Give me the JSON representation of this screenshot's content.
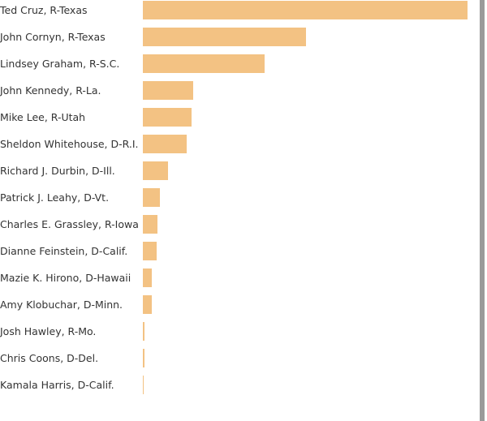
{
  "colors": {
    "bar": "#f3c283",
    "right_rule": "#9a9a9a"
  },
  "chart_data": {
    "type": "bar",
    "orientation": "horizontal",
    "categories": [
      "Ted Cruz, R-Texas",
      "John Cornyn, R-Texas",
      "Lindsey Graham, R-S.C.",
      "John Kennedy, R-La.",
      "Mike Lee, R-Utah",
      "Sheldon Whitehouse, D-R.I.",
      "Richard J. Durbin, D-Ill.",
      "Patrick J. Leahy, D-Vt.",
      "Charles E. Grassley, R-Iowa",
      "Dianne Feinstein, D-Calif.",
      "Mazie K. Hirono, D-Hawaii",
      "Amy Klobuchar, D-Minn.",
      "Josh Hawley, R-Mo.",
      "Chris Coons, D-Del.",
      "Kamala Harris, D-Calif."
    ],
    "values": [
      100,
      50.25,
      37.5,
      15.5,
      15,
      13.5,
      7.75,
      5.25,
      4.5,
      4.25,
      2.75,
      2.75,
      0.5,
      0.5,
      0.25
    ],
    "xlim": [
      0,
      100
    ],
    "title": "",
    "xlabel": "",
    "ylabel": ""
  }
}
